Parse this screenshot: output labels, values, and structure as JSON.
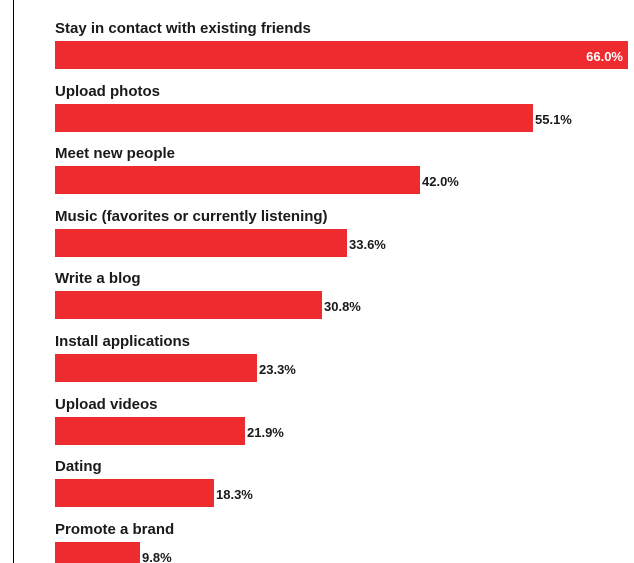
{
  "chart_data": {
    "type": "bar",
    "orientation": "horizontal",
    "categories": [
      "Stay in contact with existing friends",
      "Upload photos",
      "Meet new people",
      "Music (favorites or currently listening)",
      "Write a blog",
      "Install applications",
      "Upload videos",
      "Dating",
      "Promote a brand"
    ],
    "values": [
      66.0,
      55.1,
      42.0,
      33.6,
      30.8,
      23.3,
      21.9,
      18.3,
      9.8
    ],
    "value_labels": [
      "66.0%",
      "55.1%",
      "42.0%",
      "33.6%",
      "30.8%",
      "23.3%",
      "21.9%",
      "18.3%",
      "9.8%"
    ],
    "title": "",
    "xlabel": "",
    "ylabel": "",
    "xlim": [
      0,
      66.0
    ],
    "grid": false,
    "legend": "none",
    "colors": {
      "bar": "#ee2b2e",
      "text": "#1a1a1a",
      "inside_label": "#ffffff"
    }
  }
}
